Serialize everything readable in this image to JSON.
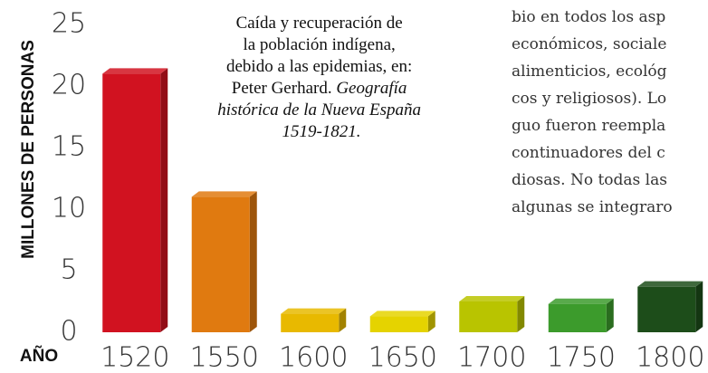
{
  "chart_data": {
    "type": "bar3d",
    "ylabel": "MILLONES DE PERSONAS",
    "xlabel": "AÑO",
    "categories": [
      "1520",
      "1550",
      "1600",
      "1650",
      "1700",
      "1750",
      "1800"
    ],
    "values": [
      21,
      11,
      1.5,
      1.3,
      2.5,
      2.3,
      3.7
    ],
    "colors": [
      "#d11220",
      "#e07a10",
      "#e8b900",
      "#e5d300",
      "#b9c400",
      "#3c9b2c",
      "#1d4d1a"
    ],
    "ylim": [
      0,
      25
    ],
    "yticks": [
      0,
      5,
      10,
      15,
      20,
      25
    ],
    "annotation": [
      "Caída y recuperación de",
      "la población indígena,",
      "debido a las epidemias, en:",
      "Peter Gerhard.",
      "Geografía",
      "histórica de la Nueva España",
      "1519-1821."
    ]
  },
  "body_text": [
    "bio en todos los asp",
    "económicos, sociale",
    "alimenticios, ecológ",
    "cos y religiosos). Lo",
    "guo fueron reempla",
    "continuadores del c",
    "diosas. No todas las",
    "algunas se integraro"
  ]
}
